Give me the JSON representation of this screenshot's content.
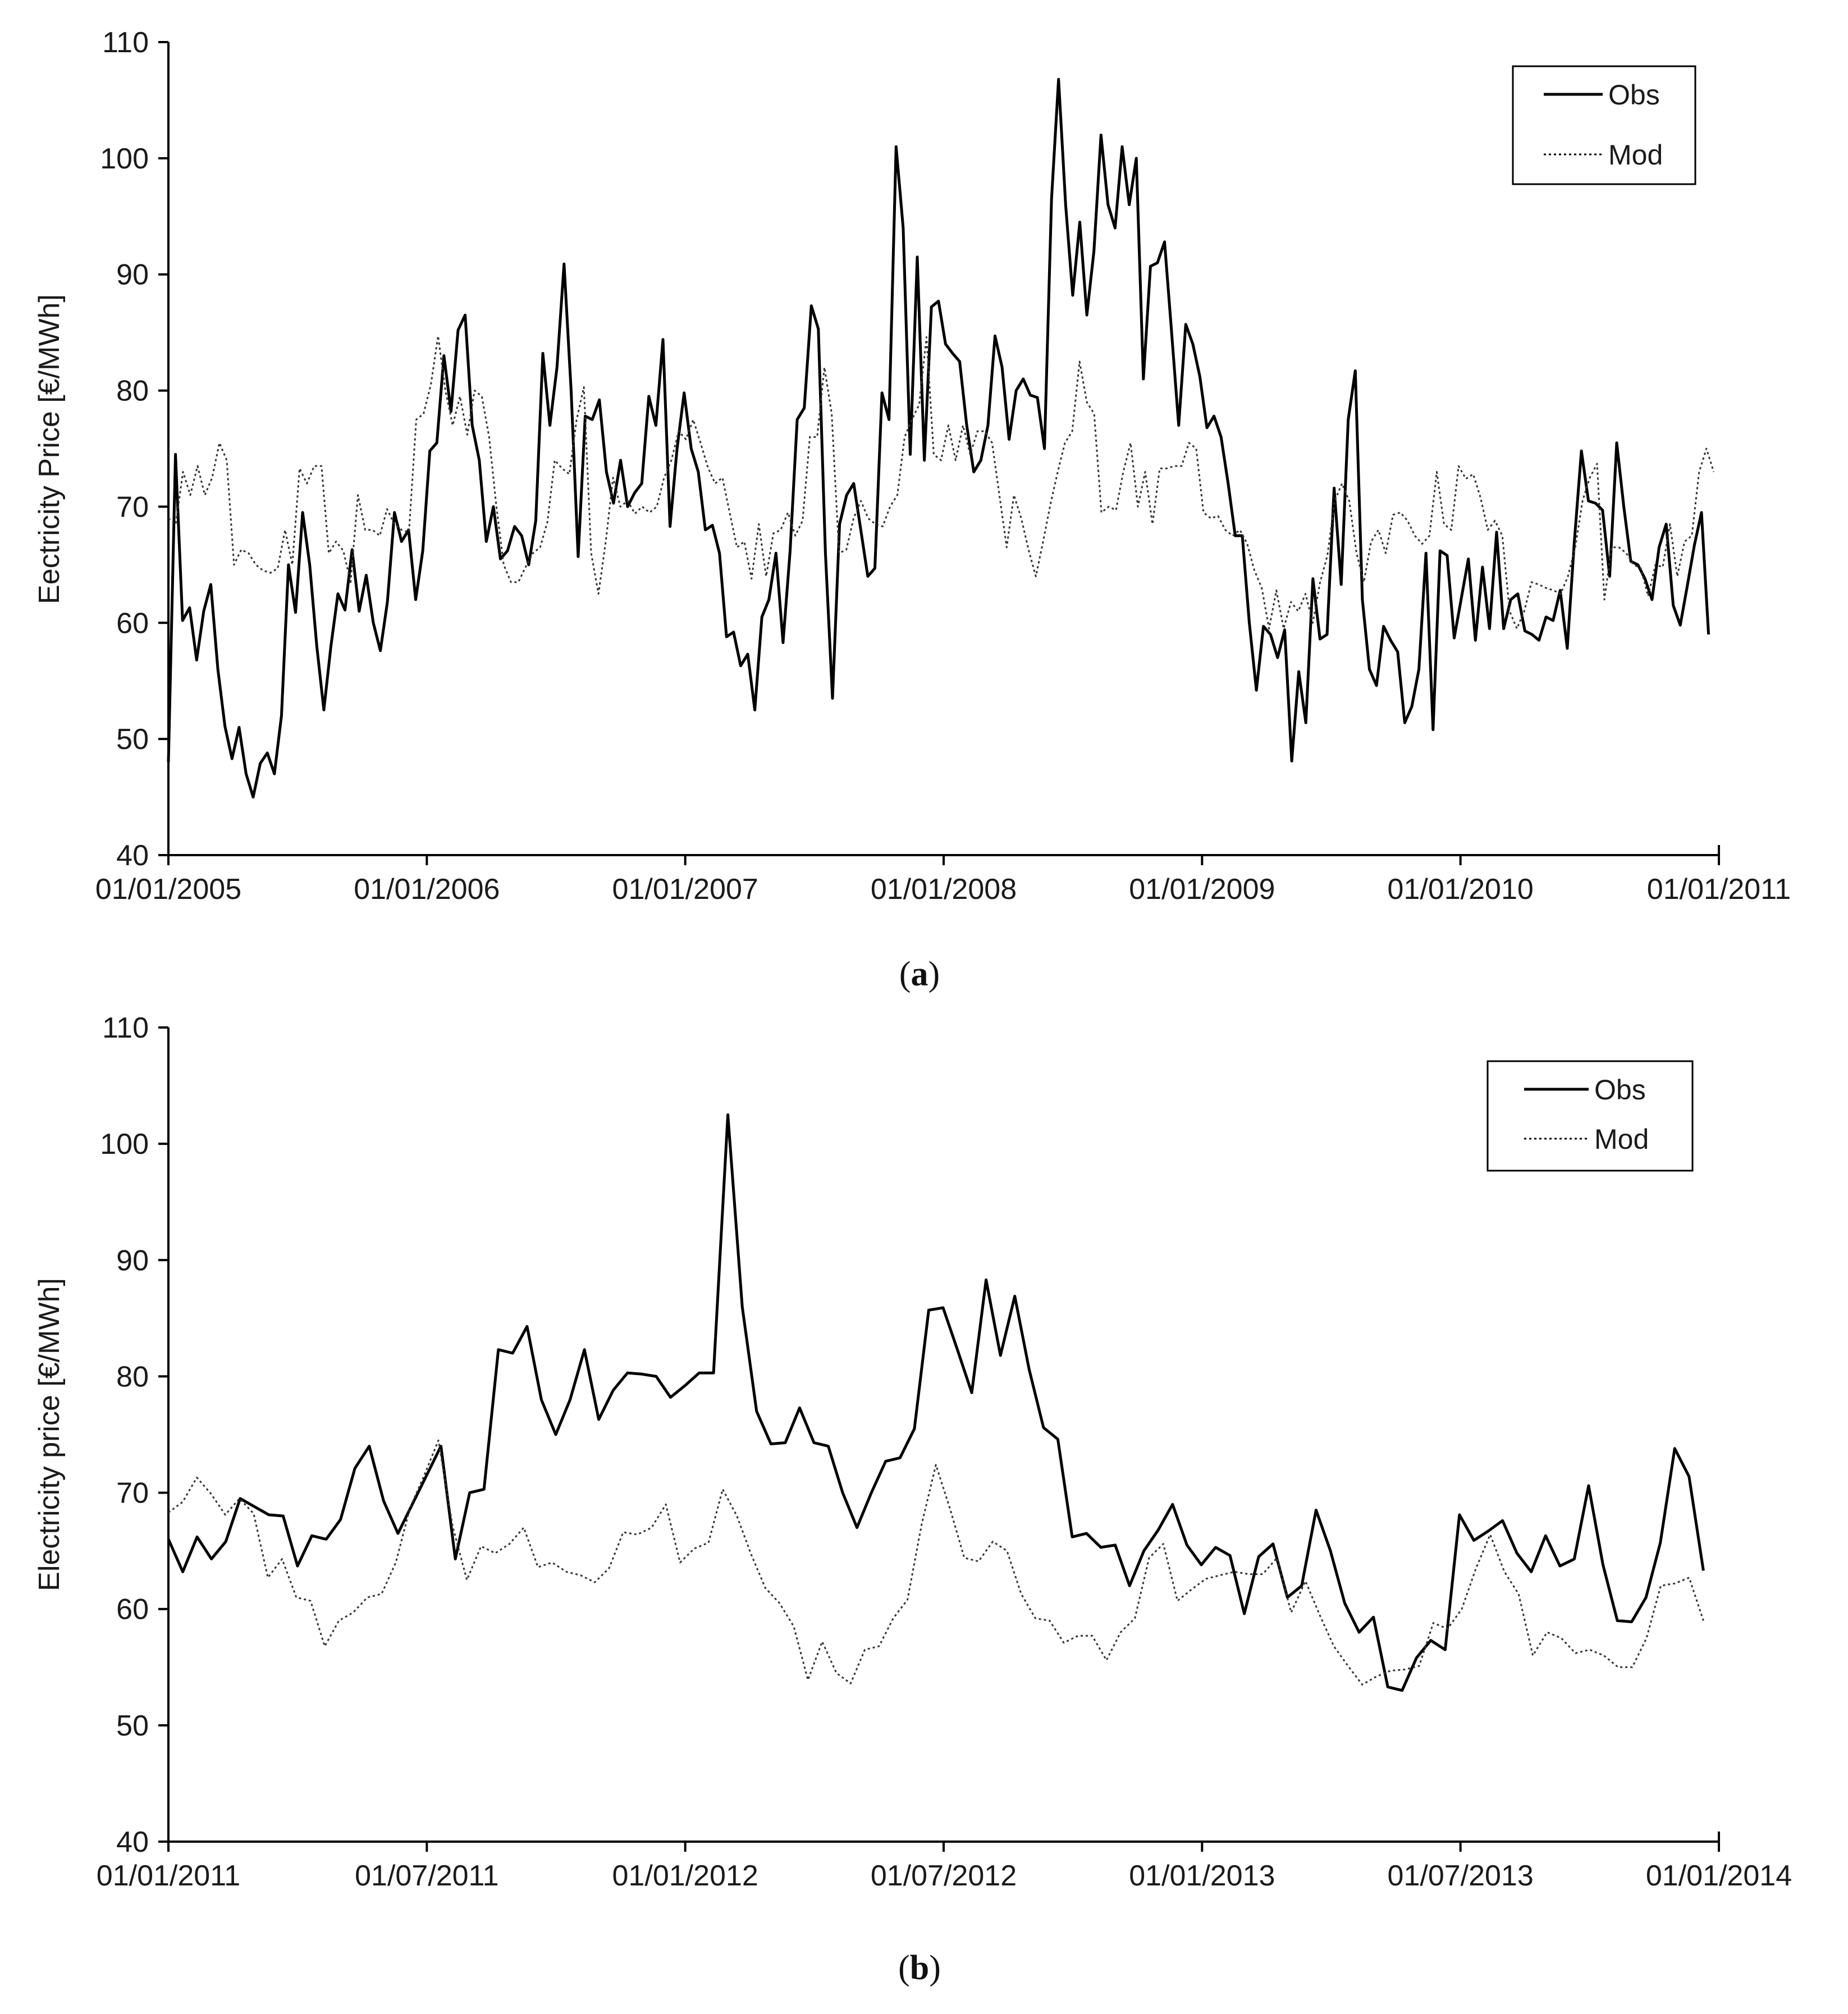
{
  "chart_data": [
    {
      "type": "line",
      "panel_label": "a",
      "xlabel": "",
      "ylabel": "Eectricity Price [€/MWh]",
      "ylim": [
        40,
        110
      ],
      "yticks": [
        40,
        50,
        60,
        70,
        80,
        90,
        100,
        110
      ],
      "xlim": [
        2005.0,
        2011.0
      ],
      "xticks": [
        {
          "value": 2005.0,
          "label": "01/01/2005"
        },
        {
          "value": 2006.0,
          "label": "01/01/2006"
        },
        {
          "value": 2007.0,
          "label": "01/01/2007"
        },
        {
          "value": 2008.0,
          "label": "01/01/2008"
        },
        {
          "value": 2009.0,
          "label": "01/01/2009"
        },
        {
          "value": 2010.0,
          "label": "01/01/2010"
        },
        {
          "value": 2011.0,
          "label": "01/01/2011"
        }
      ],
      "grid": false,
      "legend": "top-right",
      "series": [
        {
          "name": "Obs",
          "style": "solid",
          "x_start": 2005.0,
          "x_end": 2010.96,
          "values": [
            48,
            74.5,
            60.2,
            61.3,
            56.8,
            61,
            63.3,
            56,
            51.1,
            48.3,
            51,
            47,
            45,
            47.9,
            48.8,
            47,
            52,
            65,
            60.9,
            69.5,
            65,
            58,
            52.5,
            58,
            62.5,
            61.1,
            66.3,
            61,
            64.1,
            60,
            57.6,
            61.8,
            69.5,
            67,
            68,
            62,
            66.2,
            74.8,
            75.5,
            83,
            78.2,
            85.2,
            86.5,
            77,
            74,
            67,
            70,
            65.5,
            66.2,
            68.3,
            67.5,
            65,
            68.8,
            83.2,
            77,
            82,
            90.9,
            80,
            65.7,
            77.8,
            77.5,
            79.2,
            73,
            70.3,
            74,
            70,
            71.2,
            72,
            79.5,
            77,
            84.4,
            68.3,
            75,
            79.8,
            75,
            73,
            68,
            68.4,
            66,
            58.8,
            59.2,
            56.3,
            57.3,
            52.5,
            60.5,
            62,
            66,
            58.3,
            66.2,
            77.5,
            78.5,
            87.3,
            85.3,
            66,
            53.5,
            68.5,
            71,
            72,
            68,
            64,
            64.7,
            79.8,
            77.5,
            101,
            94,
            74.5,
            91.5,
            74,
            87.2,
            87.7,
            84,
            83.2,
            82.5,
            77,
            73,
            74,
            77,
            84.7,
            82,
            75.8,
            80,
            81,
            79.6,
            79.4,
            75,
            96.5,
            106.8,
            96,
            88.2,
            94.5,
            86.5,
            92,
            102,
            96,
            94,
            101,
            96,
            100,
            81,
            90.7,
            91,
            92.8,
            85,
            77,
            85.7,
            84,
            81.2,
            76.8,
            77.8,
            76,
            72,
            67.5,
            67.5,
            60,
            54.2,
            59.7,
            59,
            57,
            59.4,
            48.1,
            55.8,
            51.4,
            63.8,
            58.6,
            59,
            71.6,
            63.3,
            77.5,
            81.7,
            62,
            56,
            54.6,
            59.7,
            58.5,
            57.5,
            51.4,
            52.8,
            56,
            66,
            50.8,
            66.2,
            65.8,
            58.7,
            62.1,
            65.5,
            58.5,
            64.8,
            59.5,
            67.8,
            59.5,
            62,
            62.5,
            59.3,
            59,
            58.5,
            60.5,
            60.2,
            62.8,
            57.8,
            67,
            74.8,
            70.5,
            70.3,
            69.7,
            64,
            75.5,
            70,
            65.3,
            65,
            63.8,
            62,
            66.5,
            68.5,
            61.5,
            59.8,
            63.2,
            66.7,
            69.5,
            59
          ]
        },
        {
          "name": "Mod",
          "style": "dotted",
          "x_start": 2005.0,
          "x_end": 2010.98,
          "values": [
            69,
            68.5,
            73,
            71,
            73.5,
            71,
            72.5,
            75.5,
            74,
            65,
            66.3,
            66,
            65,
            64.5,
            64.3,
            64.7,
            68,
            65,
            73.3,
            72,
            73.5,
            73.5,
            66,
            67,
            66.2,
            63.5,
            71,
            68,
            68,
            67.5,
            69.8,
            68.5,
            68,
            67.8,
            77.5,
            78,
            80.5,
            84.7,
            80,
            77,
            79.5,
            76.2,
            80,
            79.5,
            76,
            70,
            65,
            63.5,
            63.5,
            64.8,
            66,
            66.5,
            68.7,
            74,
            73.3,
            72.8,
            77.5,
            80.3,
            66,
            62.5,
            67,
            72.5,
            70,
            70.5,
            69.4,
            70,
            69.5,
            70,
            72.5,
            74,
            76.5,
            75.8,
            77.5,
            75.5,
            73.4,
            72,
            72.5,
            69.5,
            66.5,
            67,
            63.8,
            68.5,
            64,
            67.7,
            68,
            69.5,
            67.5,
            68.8,
            76,
            76,
            82,
            78,
            66,
            66.3,
            69,
            70.5,
            69,
            68.5,
            68.3,
            70,
            71,
            76,
            77.5,
            78.8,
            84.6,
            74.5,
            74,
            77,
            74,
            77,
            74.5,
            76.5,
            76.5,
            75.5,
            71,
            66.5,
            71,
            69,
            66.3,
            64,
            67,
            70.2,
            73,
            75.5,
            76.5,
            82.5,
            79,
            78,
            69.5,
            70,
            69.7,
            73,
            75.5,
            70,
            73,
            68.5,
            73.3,
            73.3,
            73.5,
            73.5,
            75.5,
            75,
            69.5,
            69,
            69.2,
            68,
            67.5,
            68,
            66.8,
            64.5,
            63,
            59.5,
            62.8,
            59.5,
            61.8,
            61,
            62.5,
            60,
            63.5,
            65.8,
            70.5,
            72,
            70.5,
            66,
            63.5,
            67,
            68,
            66,
            69.3,
            69.5,
            68.8,
            67.5,
            66.8,
            67.5,
            73,
            68.5,
            68,
            73.5,
            72.4,
            72.8,
            70.8,
            68,
            68.8,
            67.5,
            61,
            59.5,
            61,
            63.5,
            63.3,
            63,
            62.8,
            62.5,
            64,
            66.5,
            70.5,
            72.5,
            73.7,
            62,
            66.5,
            66.5,
            66,
            65,
            64.7,
            62.3,
            65,
            64.8,
            68.5,
            64,
            67,
            67.5,
            73,
            75,
            73
          ]
        }
      ]
    },
    {
      "type": "line",
      "panel_label": "b",
      "xlabel": "",
      "ylabel": "Electricity price [€/MWh]",
      "ylim": [
        40,
        110
      ],
      "yticks": [
        40,
        50,
        60,
        70,
        80,
        90,
        100,
        110
      ],
      "xlim": [
        2011.0,
        2014.0
      ],
      "xticks": [
        {
          "value": 2011.0,
          "label": "01/01/2011"
        },
        {
          "value": 2011.5,
          "label": "01/07/2011"
        },
        {
          "value": 2012.0,
          "label": "01/01/2012"
        },
        {
          "value": 2012.5,
          "label": "01/07/2012"
        },
        {
          "value": 2013.0,
          "label": "01/01/2013"
        },
        {
          "value": 2013.5,
          "label": "01/07/2013"
        },
        {
          "value": 2014.0,
          "label": "01/01/2014"
        }
      ],
      "grid": false,
      "legend": "top-right",
      "series": [
        {
          "name": "Obs",
          "style": "solid",
          "x_start": 2011.0,
          "x_end": 2013.97,
          "values": [
            66,
            63.2,
            66.2,
            64.3,
            65.8,
            69.5,
            68.8,
            68.1,
            68,
            63.7,
            66.3,
            66,
            67.7,
            72.1,
            74,
            69.3,
            66.5,
            69,
            71.5,
            74,
            64.3,
            70,
            70.3,
            82.3,
            82,
            84.3,
            78,
            75,
            78,
            82.3,
            76.3,
            78.8,
            80.3,
            80.2,
            80,
            78.2,
            79.2,
            80.3,
            80.3,
            102.5,
            86,
            77,
            74.2,
            74.3,
            77.3,
            74.3,
            74,
            70,
            67,
            70,
            72.7,
            73,
            75.5,
            85.7,
            85.9,
            82.3,
            78.6,
            88.3,
            81.8,
            86.9,
            80.6,
            75.6,
            74.6,
            66.2,
            66.5,
            65.3,
            65.5,
            62,
            65,
            66.8,
            69,
            65.5,
            63.8,
            65.3,
            64.6,
            59.6,
            64.5,
            65.6,
            61,
            62,
            68.5,
            65,
            60.5,
            58,
            59.3,
            53.3,
            53,
            55.8,
            57.3,
            56.5,
            68.1,
            65.9,
            66.7,
            67.6,
            64.8,
            63.2,
            66.3,
            63.7,
            64.3,
            70.6,
            63.8,
            59,
            58.9,
            61,
            65.7,
            73.8,
            71.4,
            63.3
          ]
        },
        {
          "name": "Mod",
          "style": "dotted",
          "x_start": 2011.0,
          "x_end": 2013.97,
          "values": [
            68.3,
            69.2,
            71.3,
            69.9,
            68.1,
            69.5,
            68.2,
            62.7,
            64.3,
            61,
            60.7,
            56.8,
            59,
            59.7,
            61,
            61.3,
            64,
            68.7,
            71.5,
            74.5,
            67.1,
            62.5,
            65.4,
            64.8,
            65.6,
            67,
            63.6,
            64,
            63.2,
            62.9,
            62.3,
            63.5,
            66.6,
            66.4,
            67,
            69,
            64,
            65.2,
            65.7,
            70.3,
            68,
            64.7,
            61.8,
            60.5,
            58.5,
            53.9,
            57.2,
            54.5,
            53.6,
            56.5,
            56.8,
            59.2,
            60.8,
            67.3,
            72.4,
            68.6,
            64.4,
            64.1,
            65.8,
            65,
            61.3,
            59.2,
            59,
            57.1,
            57.7,
            57.7,
            55.6,
            58,
            59.2,
            64.4,
            65.6,
            60.7,
            61.7,
            62.6,
            62.9,
            63.2,
            63,
            63,
            64.4,
            59.7,
            62.4,
            59.5,
            56.8,
            55.1,
            53.5,
            54.2,
            54.7,
            54.8,
            55.1,
            58.8,
            58.3,
            60,
            63.5,
            66.4,
            63.2,
            61.3,
            56,
            58,
            57.5,
            56.2,
            56.5,
            56,
            55,
            55,
            57.5,
            62,
            62.2,
            62.7,
            59
          ]
        }
      ]
    }
  ]
}
